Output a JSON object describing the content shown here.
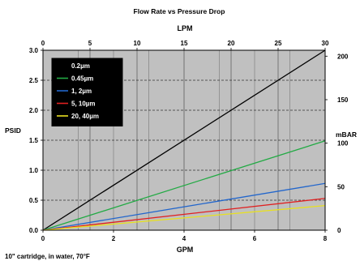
{
  "chart_data": {
    "type": "line",
    "title": "Flow Rate vs Pressure Drop",
    "footnote": "10\" cartridge, in water, 70°F",
    "x_bottom": {
      "label": "GPM",
      "range": [
        0,
        8
      ],
      "ticks": [
        "0",
        "2",
        "4",
        "6",
        "8"
      ]
    },
    "x_top": {
      "label": "LPM",
      "range": [
        0,
        30
      ],
      "ticks": [
        "0",
        "5",
        "10",
        "15",
        "20",
        "25",
        "30"
      ]
    },
    "y_left": {
      "label": "PSID",
      "range": [
        0,
        3.0
      ],
      "ticks": [
        "0.0",
        "0.5",
        "1.0",
        "1.5",
        "2.0",
        "2.5",
        "3.0"
      ]
    },
    "y_right": {
      "label": "mBAR",
      "range": [
        0,
        206.8
      ],
      "ticks": [
        "0",
        "50",
        "100",
        "150",
        "200"
      ]
    },
    "grid": {
      "vertical_major": true,
      "vertical_minor": true,
      "horizontal_dashed": true
    },
    "plot_background": "#c0c0c0",
    "legend_placement": "top-left",
    "series": [
      {
        "name": "0.2µm",
        "color": "#000000",
        "x": [
          0,
          8
        ],
        "y": [
          0,
          3.0
        ]
      },
      {
        "name": "0.45µm",
        "color": "#22aa44",
        "x": [
          0,
          8
        ],
        "y": [
          0,
          1.49
        ]
      },
      {
        "name": "1, 2µm",
        "color": "#2266cc",
        "x": [
          0,
          8
        ],
        "y": [
          0,
          0.78
        ]
      },
      {
        "name": "5, 10µm",
        "color": "#e02020",
        "x": [
          0,
          8
        ],
        "y": [
          0,
          0.53
        ]
      },
      {
        "name": "20, 40µm",
        "color": "#e8e020",
        "x": [
          0,
          8
        ],
        "y": [
          0,
          0.41
        ]
      }
    ]
  }
}
